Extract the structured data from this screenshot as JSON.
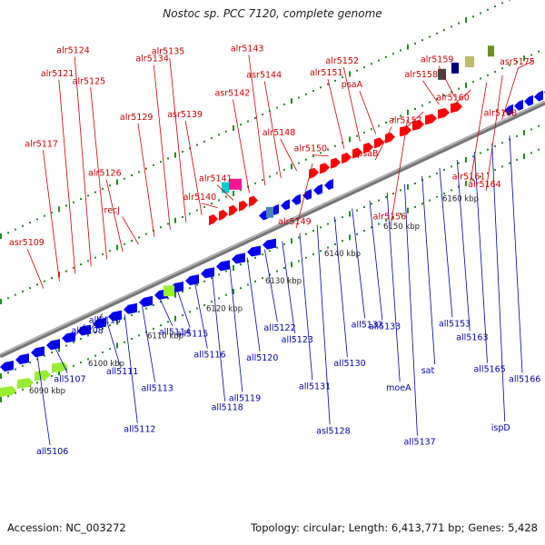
{
  "title": "Nostoc sp. PCC 7120, complete genome",
  "footer": {
    "accession": "Accession: NC_003272",
    "summary": "Topology: circular; Length: 6,413,771 bp; Genes: 5,428"
  },
  "colors": {
    "forward_label": "#cc0000",
    "reverse_label": "#0000aa",
    "forward_gene": "#ff0000",
    "reverse_gene": "#0000ee",
    "tick_dot": "#228b22",
    "backbone": "#888888"
  },
  "tick_labels": [
    {
      "text": "6090 kbp",
      "pos": 6090
    },
    {
      "text": "6100 kbp",
      "pos": 6100
    },
    {
      "text": "6110 kbp",
      "pos": 6110
    },
    {
      "text": "6120 kbp",
      "pos": 6120
    },
    {
      "text": "6130 kbp",
      "pos": 6130
    },
    {
      "text": "6140 kbp",
      "pos": 6140
    },
    {
      "text": "6150 kbp",
      "pos": 6150
    },
    {
      "text": "6160 kbp",
      "pos": 6160
    }
  ],
  "forward_labels": [
    {
      "text": "asr5109"
    },
    {
      "text": "alr5117"
    },
    {
      "text": "alr5121"
    },
    {
      "text": "alr5124"
    },
    {
      "text": "alr5125"
    },
    {
      "text": "alr5126"
    },
    {
      "text": "recJ"
    },
    {
      "text": "alr5129"
    },
    {
      "text": "alr5134"
    },
    {
      "text": "alr5135"
    },
    {
      "text": "asr5139"
    },
    {
      "text": "alr5140"
    },
    {
      "text": "alr5141"
    },
    {
      "text": "asr5142"
    },
    {
      "text": "alr5143"
    },
    {
      "text": "asr5144"
    },
    {
      "text": "alr5148"
    },
    {
      "text": "alr5149"
    },
    {
      "text": "alr5150"
    },
    {
      "text": "alr5151"
    },
    {
      "text": "alr5152"
    },
    {
      "text": "psaA"
    },
    {
      "text": "psaB"
    },
    {
      "text": "alr5156"
    },
    {
      "text": "alr5157"
    },
    {
      "text": "alr5158"
    },
    {
      "text": "alr5159"
    },
    {
      "text": "alr5160"
    },
    {
      "text": "alr5161"
    },
    {
      "text": "alr5164"
    },
    {
      "text": "alr5168"
    },
    {
      "text": "asr5175"
    }
  ],
  "reverse_labels": [
    {
      "text": "all5106"
    },
    {
      "text": "all5107"
    },
    {
      "text": "all5108"
    },
    {
      "text": "all5110"
    },
    {
      "text": "all5111"
    },
    {
      "text": "all5112"
    },
    {
      "text": "all5113"
    },
    {
      "text": "all5114"
    },
    {
      "text": "all5115"
    },
    {
      "text": "all5116"
    },
    {
      "text": "all5118"
    },
    {
      "text": "all5119"
    },
    {
      "text": "all5120"
    },
    {
      "text": "all5122"
    },
    {
      "text": "all5123"
    },
    {
      "text": "all5131"
    },
    {
      "text": "asl5128"
    },
    {
      "text": "all5130"
    },
    {
      "text": "all5132"
    },
    {
      "text": "all5133"
    },
    {
      "text": "moeA"
    },
    {
      "text": "all5137"
    },
    {
      "text": "sat"
    },
    {
      "text": "all5153"
    },
    {
      "text": "all5163"
    },
    {
      "text": "all5165"
    },
    {
      "text": "ispD"
    },
    {
      "text": "all5166"
    }
  ]
}
